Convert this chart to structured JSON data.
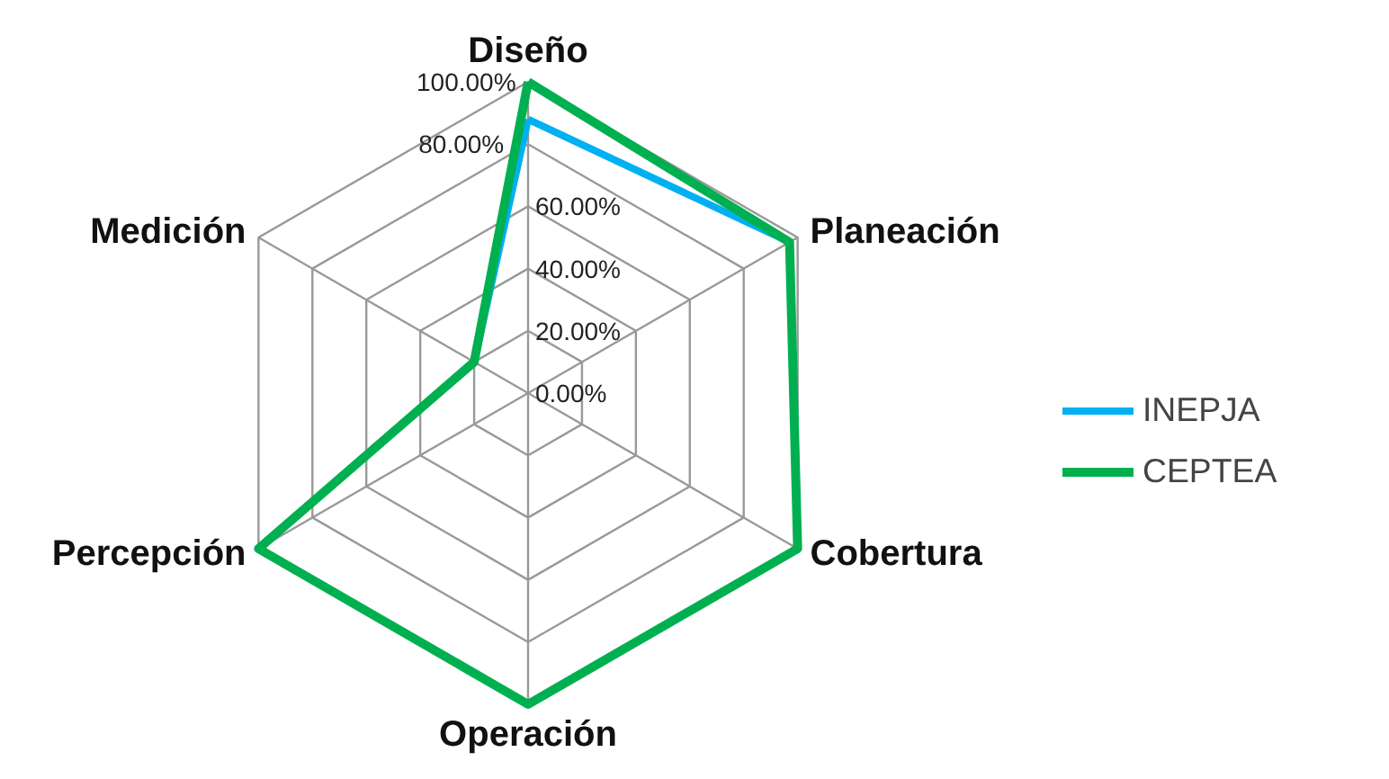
{
  "chart_data": {
    "type": "radar",
    "categories": [
      "Diseño",
      "Planeación",
      "Cobertura",
      "Operación",
      "Percepción",
      "Medición"
    ],
    "series": [
      {
        "name": "INEPJA",
        "color": "#00b0f0",
        "values": [
          88,
          97,
          100,
          100,
          100,
          20
        ]
      },
      {
        "name": "CEPTEA",
        "color": "#00b050",
        "values": [
          100,
          97,
          100,
          100,
          100,
          20
        ]
      }
    ],
    "ylim": [
      0,
      100
    ],
    "yticks": [
      {
        "value": 0,
        "label": "0.00%"
      },
      {
        "value": 20,
        "label": "20.00%"
      },
      {
        "value": 40,
        "label": "40.00%"
      },
      {
        "value": 60,
        "label": "60.00%"
      },
      {
        "value": 80,
        "label": "80.00%"
      },
      {
        "value": 100,
        "label": "100.00%"
      }
    ],
    "grid": true,
    "legend": "right",
    "marker": "none",
    "line_style": "solid"
  }
}
